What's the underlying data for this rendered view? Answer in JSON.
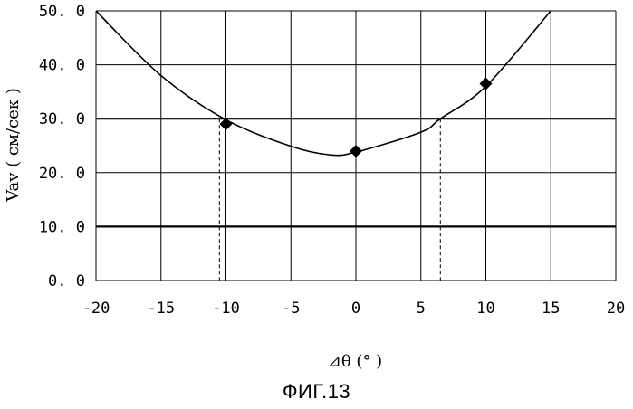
{
  "chart_data": {
    "type": "scatter",
    "x": [
      -10,
      0,
      10
    ],
    "y": [
      29.0,
      24.0,
      36.5
    ],
    "fit_curve": {
      "type": "quadratic",
      "points": [
        [
          -20,
          50.0
        ],
        [
          -15,
          38.0
        ],
        [
          -10,
          29.8
        ],
        [
          -5,
          24.9
        ],
        [
          -2,
          23.3
        ],
        [
          0,
          23.8
        ],
        [
          5,
          27.5
        ],
        [
          6.5,
          30.0
        ],
        [
          10,
          36.0
        ],
        [
          15,
          50.0
        ]
      ]
    },
    "threshold_lines": [
      10.0,
      30.0
    ],
    "crossings_x": [
      -10.5,
      6.5
    ],
    "xlim": [
      -20,
      20
    ],
    "ylim": [
      0,
      50
    ],
    "xticks": [
      "-20",
      "-15",
      "-10",
      "-5",
      "0",
      "5",
      "10",
      "15",
      "20"
    ],
    "yticks": [
      "0. 0",
      "10. 0",
      "20. 0",
      "30. 0",
      "40. 0",
      "50. 0"
    ],
    "xlabel": "⊿θ (° )",
    "ylabel": "Vav ( см/сек )",
    "grid": true,
    "caption": "ФИГ.13",
    "colors": {
      "line": "#000000",
      "marker": "#000000",
      "background": "#ffffff"
    }
  }
}
